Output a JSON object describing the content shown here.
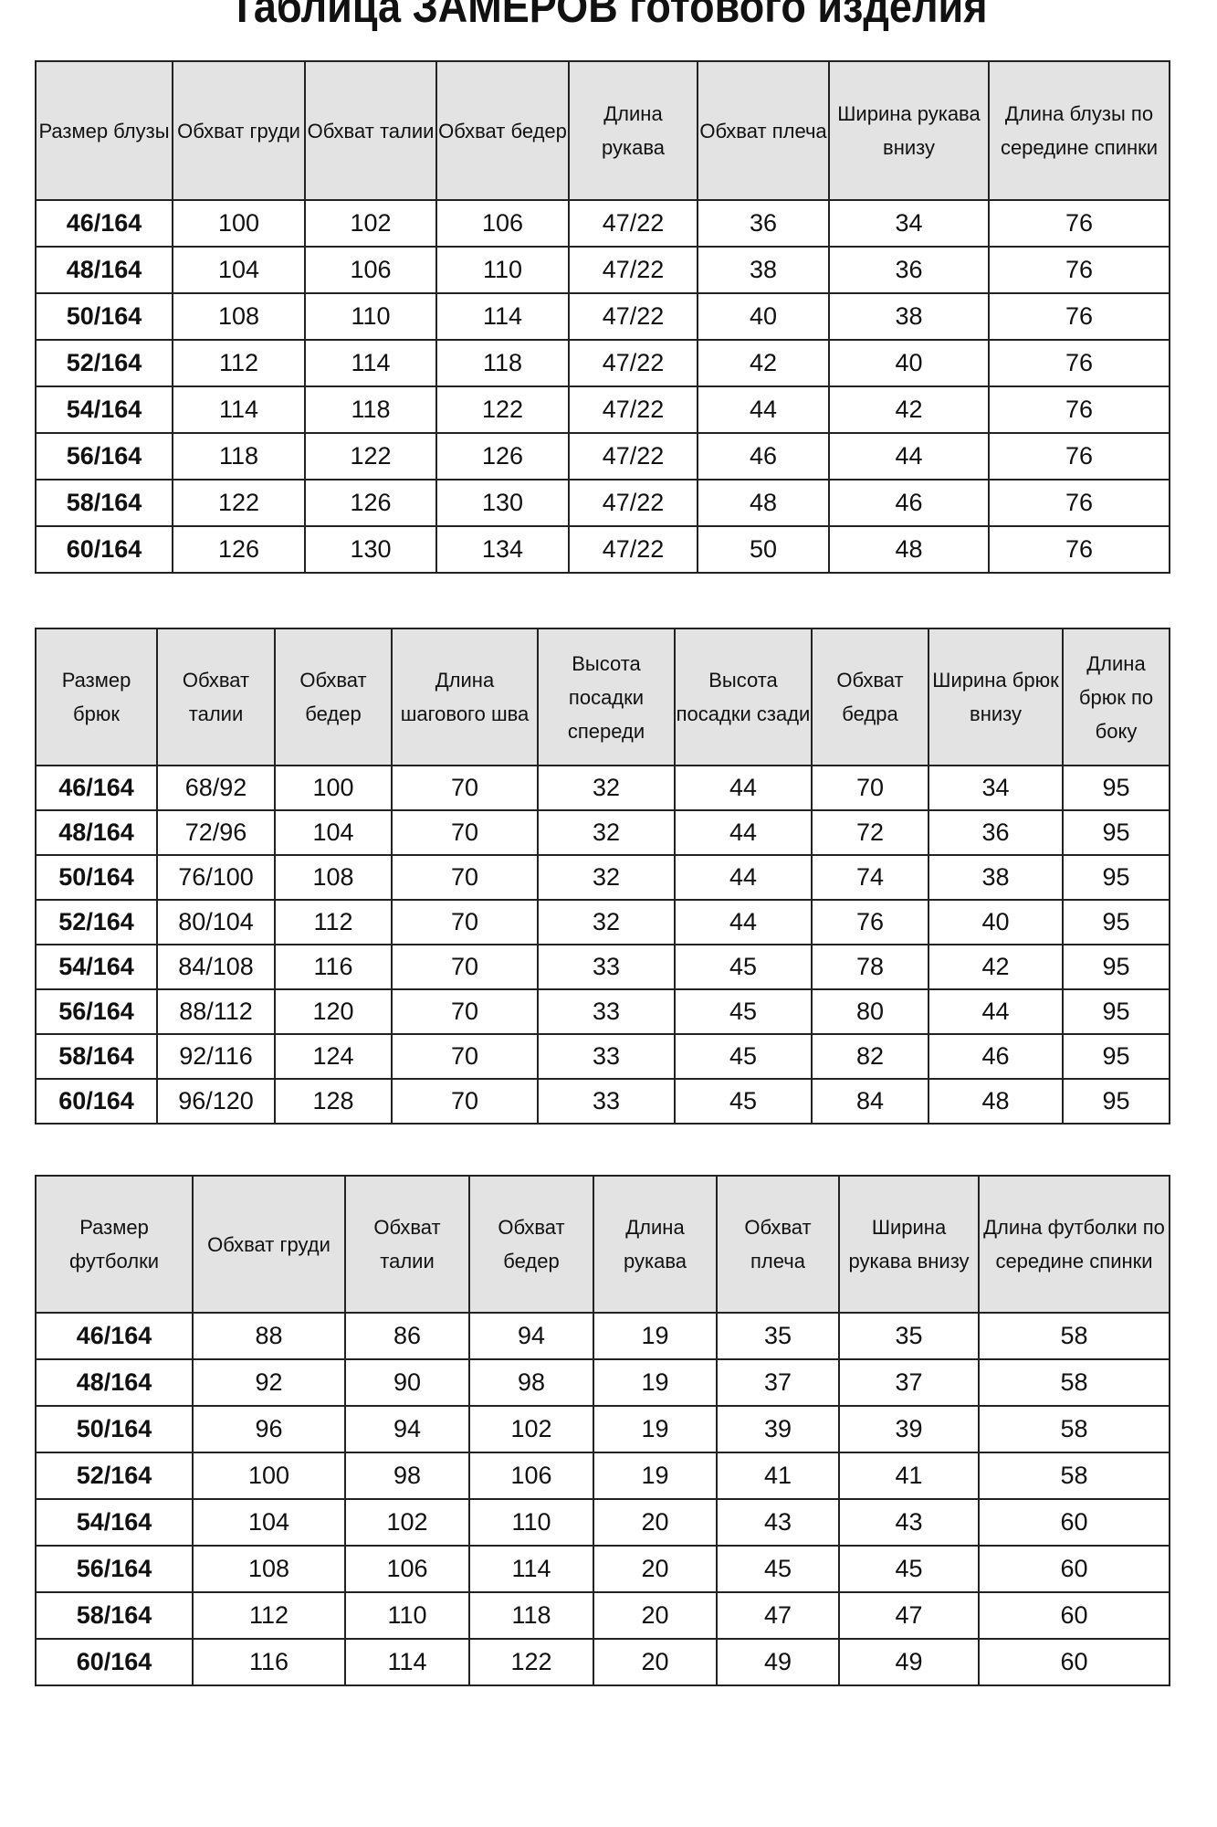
{
  "title": "Таблица ЗАМЕРОВ готового изделия",
  "tables": [
    {
      "headers": [
        "Размер блузы",
        "Обхват груди",
        "Обхват талии",
        "Обхват бедер",
        "Длина рукава",
        "Обхват плеча",
        "Ширина рукава внизу",
        "Длина блузы по середине спинки"
      ],
      "rows": [
        [
          "46/164",
          "100",
          "102",
          "106",
          "47/22",
          "36",
          "34",
          "76"
        ],
        [
          "48/164",
          "104",
          "106",
          "110",
          "47/22",
          "38",
          "36",
          "76"
        ],
        [
          "50/164",
          "108",
          "110",
          "114",
          "47/22",
          "40",
          "38",
          "76"
        ],
        [
          "52/164",
          "112",
          "114",
          "118",
          "47/22",
          "42",
          "40",
          "76"
        ],
        [
          "54/164",
          "114",
          "118",
          "122",
          "47/22",
          "44",
          "42",
          "76"
        ],
        [
          "56/164",
          "118",
          "122",
          "126",
          "47/22",
          "46",
          "44",
          "76"
        ],
        [
          "58/164",
          "122",
          "126",
          "130",
          "47/22",
          "48",
          "46",
          "76"
        ],
        [
          "60/164",
          "126",
          "130",
          "134",
          "47/22",
          "50",
          "48",
          "76"
        ]
      ]
    },
    {
      "headers": [
        "Размер брюк",
        "Обхват талии",
        "Обхват бедер",
        "Длина шагового шва",
        "Высота посадки спереди",
        "Высота посадки сзади",
        "Обхват бедра",
        "Ширина брюк внизу",
        "Длина брюк по боку"
      ],
      "rows": [
        [
          "46/164",
          "68/92",
          "100",
          "70",
          "32",
          "44",
          "70",
          "34",
          "95"
        ],
        [
          "48/164",
          "72/96",
          "104",
          "70",
          "32",
          "44",
          "72",
          "36",
          "95"
        ],
        [
          "50/164",
          "76/100",
          "108",
          "70",
          "32",
          "44",
          "74",
          "38",
          "95"
        ],
        [
          "52/164",
          "80/104",
          "112",
          "70",
          "32",
          "44",
          "76",
          "40",
          "95"
        ],
        [
          "54/164",
          "84/108",
          "116",
          "70",
          "33",
          "45",
          "78",
          "42",
          "95"
        ],
        [
          "56/164",
          "88/112",
          "120",
          "70",
          "33",
          "45",
          "80",
          "44",
          "95"
        ],
        [
          "58/164",
          "92/116",
          "124",
          "70",
          "33",
          "45",
          "82",
          "46",
          "95"
        ],
        [
          "60/164",
          "96/120",
          "128",
          "70",
          "33",
          "45",
          "84",
          "48",
          "95"
        ]
      ]
    },
    {
      "headers": [
        "Размер футболки",
        "Обхват груди",
        "Обхват талии",
        "Обхват бедер",
        "Длина рукава",
        "Обхват плеча",
        "Ширина рукава внизу",
        "Длина футболки по середине спинки"
      ],
      "rows": [
        [
          "46/164",
          "88",
          "86",
          "94",
          "19",
          "35",
          "35",
          "58"
        ],
        [
          "48/164",
          "92",
          "90",
          "98",
          "19",
          "37",
          "37",
          "58"
        ],
        [
          "50/164",
          "96",
          "94",
          "102",
          "19",
          "39",
          "39",
          "58"
        ],
        [
          "52/164",
          "100",
          "98",
          "106",
          "19",
          "41",
          "41",
          "58"
        ],
        [
          "54/164",
          "104",
          "102",
          "110",
          "20",
          "43",
          "43",
          "60"
        ],
        [
          "56/164",
          "108",
          "106",
          "114",
          "20",
          "45",
          "45",
          "60"
        ],
        [
          "58/164",
          "112",
          "110",
          "118",
          "20",
          "47",
          "47",
          "60"
        ],
        [
          "60/164",
          "116",
          "114",
          "122",
          "20",
          "49",
          "49",
          "60"
        ]
      ]
    }
  ]
}
